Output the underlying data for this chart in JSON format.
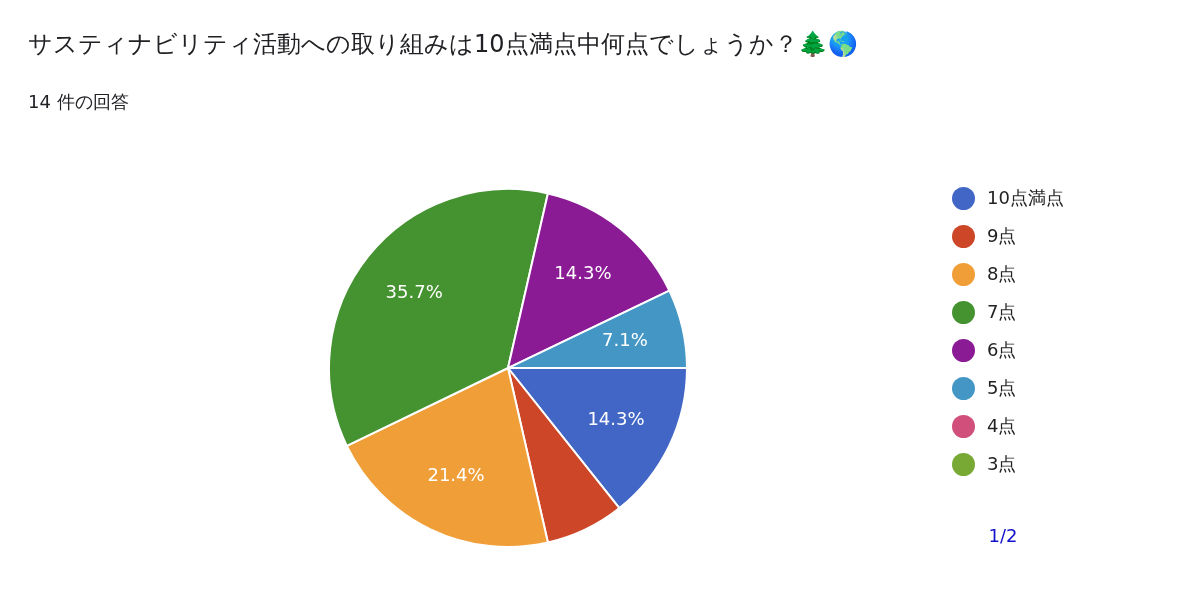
{
  "chart_data": {
    "type": "pie",
    "title": "サスティナビリティ活動への取り組みは10点満点中何点でしょうか？🌲🌎",
    "subtitle": "14 件の回答",
    "categories": [
      "10点満点",
      "9点",
      "8点",
      "7点",
      "6点",
      "5点",
      "4点",
      "3点"
    ],
    "values": [
      14.3,
      7.1,
      21.4,
      35.7,
      14.3,
      7.1,
      0,
      0
    ],
    "colors": [
      "#4166c5",
      "#cc4627",
      "#f09e38",
      "#459231",
      "#8b1a95",
      "#4497c4",
      "#d04f7b",
      "#78a935"
    ],
    "value_labels": [
      "14.3%",
      null,
      "21.4%",
      "35.7%",
      "14.3%",
      "7.1%",
      null,
      null
    ],
    "legend": "right",
    "annotations": [
      "1/2"
    ]
  }
}
